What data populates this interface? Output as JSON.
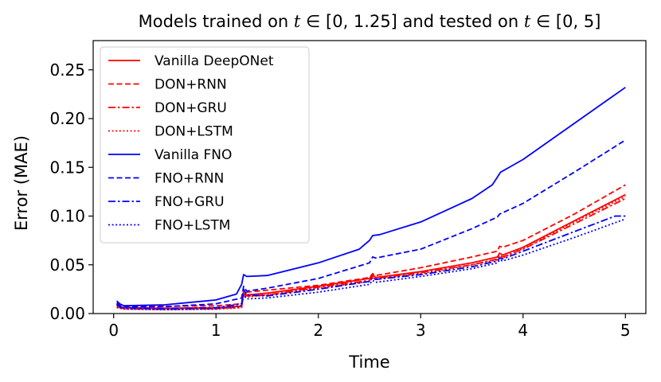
{
  "chart_data": {
    "type": "line",
    "title": "Models trained on t ∈ [0, 1.25] and tested on t ∈ [0, 5]",
    "title_parts": {
      "prefix": "Models trained on ",
      "var1": "t",
      "range1": " ∈ [0, 1.25] and tested on ",
      "var2": "t",
      "range2": " ∈ [0, 5]"
    },
    "xlabel": "Time",
    "ylabel": "Error (MAE)",
    "xlim": [
      -0.2,
      5.2
    ],
    "ylim": [
      0,
      0.28
    ],
    "xticks": [
      0,
      1,
      2,
      3,
      4,
      5
    ],
    "xtick_labels": [
      "0",
      "1",
      "2",
      "3",
      "4",
      "5"
    ],
    "yticks": [
      0,
      0.05,
      0.1,
      0.15,
      0.2,
      0.25
    ],
    "ytick_labels": [
      "0.00",
      "0.05",
      "0.10",
      "0.15",
      "0.20",
      "0.25"
    ],
    "legend_position": "top-left",
    "grid": false,
    "series": [
      {
        "name": "Vanilla DeepONet",
        "color": "#ff0000",
        "dash": "solid",
        "points": [
          [
            0.03,
            0.008
          ],
          [
            0.1,
            0.006
          ],
          [
            0.5,
            0.0055
          ],
          [
            1.0,
            0.006
          ],
          [
            1.25,
            0.0075
          ],
          [
            1.27,
            0.021
          ],
          [
            1.3,
            0.019
          ],
          [
            1.5,
            0.021
          ],
          [
            2.0,
            0.028
          ],
          [
            2.5,
            0.036
          ],
          [
            2.53,
            0.04
          ],
          [
            2.56,
            0.037
          ],
          [
            3.0,
            0.043
          ],
          [
            3.5,
            0.052
          ],
          [
            3.75,
            0.058
          ],
          [
            3.77,
            0.062
          ],
          [
            3.8,
            0.06
          ],
          [
            4.0,
            0.068
          ],
          [
            4.5,
            0.095
          ],
          [
            5.0,
            0.122
          ]
        ]
      },
      {
        "name": "DON+RNN",
        "color": "#ff0000",
        "dash": "dashed",
        "points": [
          [
            0.03,
            0.01
          ],
          [
            0.1,
            0.008
          ],
          [
            0.5,
            0.0075
          ],
          [
            1.0,
            0.008
          ],
          [
            1.25,
            0.01
          ],
          [
            1.27,
            0.024
          ],
          [
            1.3,
            0.022
          ],
          [
            1.5,
            0.024
          ],
          [
            2.0,
            0.029
          ],
          [
            2.5,
            0.037
          ],
          [
            2.53,
            0.041
          ],
          [
            2.56,
            0.039
          ],
          [
            3.0,
            0.047
          ],
          [
            3.5,
            0.058
          ],
          [
            3.75,
            0.064
          ],
          [
            3.77,
            0.069
          ],
          [
            3.8,
            0.068
          ],
          [
            4.0,
            0.075
          ],
          [
            4.5,
            0.102
          ],
          [
            5.0,
            0.132
          ]
        ]
      },
      {
        "name": "DON+GRU",
        "color": "#ff0000",
        "dash": "dashdot",
        "points": [
          [
            0.03,
            0.007
          ],
          [
            0.1,
            0.005
          ],
          [
            0.5,
            0.0045
          ],
          [
            1.0,
            0.005
          ],
          [
            1.25,
            0.0065
          ],
          [
            1.27,
            0.02
          ],
          [
            1.3,
            0.018
          ],
          [
            1.5,
            0.019
          ],
          [
            2.0,
            0.027
          ],
          [
            2.5,
            0.034
          ],
          [
            2.53,
            0.038
          ],
          [
            2.56,
            0.036
          ],
          [
            3.0,
            0.042
          ],
          [
            3.5,
            0.05
          ],
          [
            3.75,
            0.056
          ],
          [
            3.77,
            0.06
          ],
          [
            3.8,
            0.058
          ],
          [
            4.0,
            0.066
          ],
          [
            4.5,
            0.092
          ],
          [
            5.0,
            0.118
          ]
        ]
      },
      {
        "name": "DON+LSTM",
        "color": "#ff0000",
        "dash": "dotted",
        "points": [
          [
            0.03,
            0.006
          ],
          [
            0.1,
            0.0045
          ],
          [
            0.5,
            0.004
          ],
          [
            1.0,
            0.0045
          ],
          [
            1.25,
            0.006
          ],
          [
            1.27,
            0.019
          ],
          [
            1.3,
            0.017
          ],
          [
            1.5,
            0.019
          ],
          [
            2.0,
            0.026
          ],
          [
            2.5,
            0.033
          ],
          [
            2.53,
            0.037
          ],
          [
            2.56,
            0.035
          ],
          [
            3.0,
            0.041
          ],
          [
            3.5,
            0.05
          ],
          [
            3.75,
            0.055
          ],
          [
            3.77,
            0.059
          ],
          [
            3.8,
            0.057
          ],
          [
            4.0,
            0.067
          ],
          [
            4.5,
            0.094
          ],
          [
            5.0,
            0.12
          ]
        ]
      },
      {
        "name": "Vanilla FNO",
        "color": "#0000ff",
        "dash": "solid",
        "points": [
          [
            0.03,
            0.013
          ],
          [
            0.06,
            0.01
          ],
          [
            0.1,
            0.008
          ],
          [
            0.5,
            0.009
          ],
          [
            1.0,
            0.014
          ],
          [
            1.2,
            0.02
          ],
          [
            1.25,
            0.03
          ],
          [
            1.27,
            0.04
          ],
          [
            1.3,
            0.038
          ],
          [
            1.5,
            0.039
          ],
          [
            2.0,
            0.052
          ],
          [
            2.4,
            0.066
          ],
          [
            2.5,
            0.075
          ],
          [
            2.53,
            0.08
          ],
          [
            2.6,
            0.081
          ],
          [
            3.0,
            0.094
          ],
          [
            3.5,
            0.118
          ],
          [
            3.7,
            0.132
          ],
          [
            3.75,
            0.14
          ],
          [
            3.78,
            0.145
          ],
          [
            4.0,
            0.158
          ],
          [
            4.5,
            0.195
          ],
          [
            5.0,
            0.232
          ]
        ]
      },
      {
        "name": "FNO+RNN",
        "color": "#0000ff",
        "dash": "dashed",
        "points": [
          [
            0.03,
            0.011
          ],
          [
            0.06,
            0.008
          ],
          [
            0.1,
            0.007
          ],
          [
            0.5,
            0.007
          ],
          [
            1.0,
            0.01
          ],
          [
            1.25,
            0.016
          ],
          [
            1.27,
            0.028
          ],
          [
            1.3,
            0.023
          ],
          [
            1.5,
            0.026
          ],
          [
            2.0,
            0.036
          ],
          [
            2.5,
            0.052
          ],
          [
            2.53,
            0.058
          ],
          [
            2.56,
            0.057
          ],
          [
            3.0,
            0.066
          ],
          [
            3.5,
            0.087
          ],
          [
            3.75,
            0.099
          ],
          [
            3.77,
            0.102
          ],
          [
            4.0,
            0.113
          ],
          [
            4.5,
            0.145
          ],
          [
            5.0,
            0.178
          ]
        ]
      },
      {
        "name": "FNO+GRU",
        "color": "#0000ff",
        "dash": "dashdot",
        "points": [
          [
            0.03,
            0.01
          ],
          [
            0.06,
            0.007
          ],
          [
            0.1,
            0.006
          ],
          [
            0.5,
            0.005
          ],
          [
            1.0,
            0.006
          ],
          [
            1.25,
            0.01
          ],
          [
            1.27,
            0.025
          ],
          [
            1.3,
            0.019
          ],
          [
            1.5,
            0.018
          ],
          [
            2.0,
            0.025
          ],
          [
            2.5,
            0.033
          ],
          [
            2.53,
            0.037
          ],
          [
            2.56,
            0.035
          ],
          [
            3.0,
            0.04
          ],
          [
            3.5,
            0.048
          ],
          [
            3.75,
            0.054
          ],
          [
            3.77,
            0.057
          ],
          [
            3.8,
            0.056
          ],
          [
            4.0,
            0.064
          ],
          [
            4.5,
            0.084
          ],
          [
            4.9,
            0.1
          ],
          [
            5.0,
            0.1
          ]
        ]
      },
      {
        "name": "FNO+LSTM",
        "color": "#0000ff",
        "dash": "dotted",
        "points": [
          [
            0.03,
            0.009
          ],
          [
            0.06,
            0.006
          ],
          [
            0.1,
            0.005
          ],
          [
            0.5,
            0.004
          ],
          [
            1.0,
            0.005
          ],
          [
            1.25,
            0.008
          ],
          [
            1.27,
            0.019
          ],
          [
            1.3,
            0.015
          ],
          [
            1.5,
            0.016
          ],
          [
            2.0,
            0.022
          ],
          [
            2.5,
            0.03
          ],
          [
            2.53,
            0.034
          ],
          [
            2.56,
            0.032
          ],
          [
            3.0,
            0.038
          ],
          [
            3.5,
            0.046
          ],
          [
            3.75,
            0.052
          ],
          [
            3.77,
            0.055
          ],
          [
            3.8,
            0.054
          ],
          [
            4.0,
            0.06
          ],
          [
            4.5,
            0.078
          ],
          [
            5.0,
            0.097
          ]
        ]
      }
    ]
  }
}
